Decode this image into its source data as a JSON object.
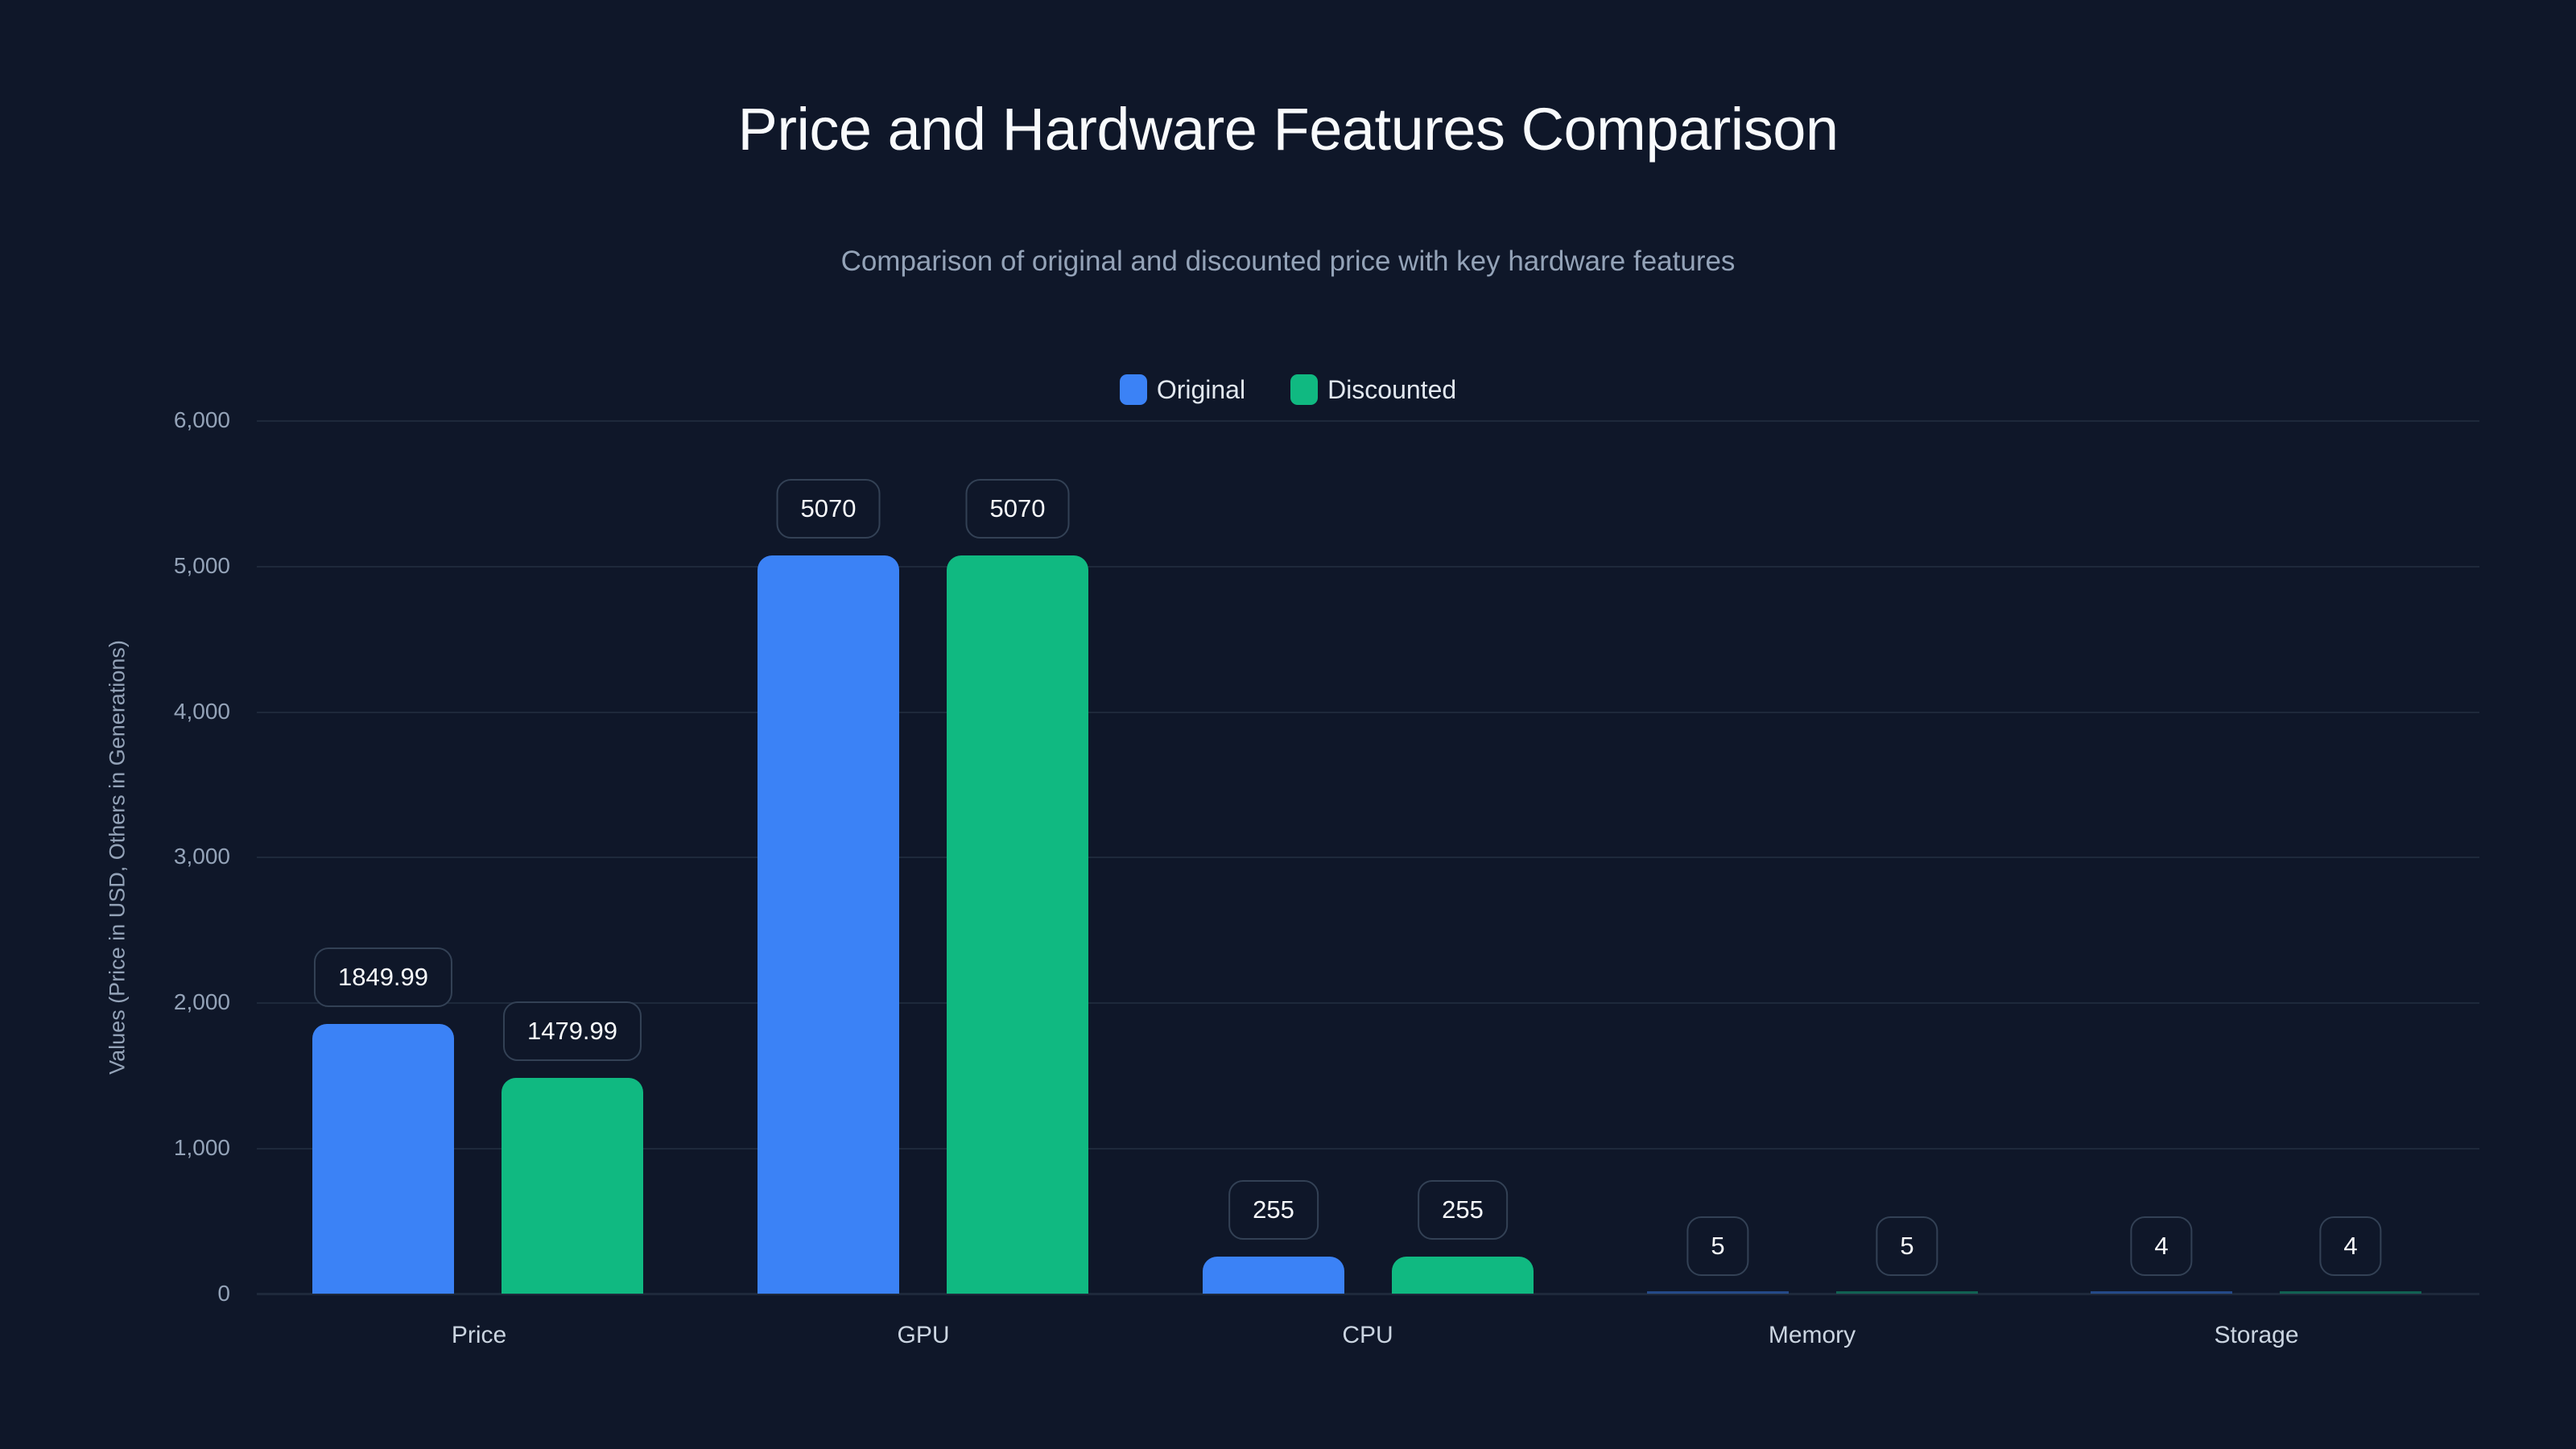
{
  "title": "Price and Hardware Features Comparison",
  "subtitle": "Comparison of original and discounted price with key hardware features",
  "legend": [
    {
      "label": "Original",
      "color": "#3b82f6"
    },
    {
      "label": "Discounted",
      "color": "#10b981"
    }
  ],
  "y_axis": {
    "title": "Values (Price in USD, Others in Generations)",
    "ticks": [
      "0",
      "1,000",
      "2,000",
      "3,000",
      "4,000",
      "5,000",
      "6,000"
    ]
  },
  "colors": {
    "background": "#0f1729",
    "original": "#3b82f6",
    "discounted": "#10b981",
    "grid": "#1e293b",
    "label_border": "#334155"
  },
  "chart_data": {
    "type": "bar",
    "title": "Price and Hardware Features Comparison",
    "subtitle": "Comparison of original and discounted price with key hardware features",
    "categories": [
      "Price",
      "GPU",
      "CPU",
      "Memory",
      "Storage"
    ],
    "series": [
      {
        "name": "Original",
        "color": "#3b82f6",
        "values": [
          1849.99,
          5070,
          255,
          5,
          4
        ],
        "labels": [
          "1849.99",
          "5070",
          "255",
          "5",
          "4"
        ]
      },
      {
        "name": "Discounted",
        "color": "#10b981",
        "values": [
          1479.99,
          5070,
          255,
          5,
          4
        ],
        "labels": [
          "1479.99",
          "5070",
          "255",
          "5",
          "4"
        ]
      }
    ],
    "xlabel": "",
    "ylabel": "Values (Price in USD, Others in Generations)",
    "ylim": [
      0,
      6000
    ],
    "yticks": [
      0,
      1000,
      2000,
      3000,
      4000,
      5000,
      6000
    ],
    "grid": true,
    "legend_position": "top-center"
  }
}
